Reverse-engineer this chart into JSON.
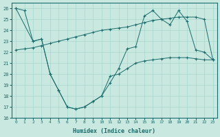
{
  "xlabel": "Humidex (Indice chaleur)",
  "bg_color": "#c8e8e0",
  "grid_color": "#a8d8d0",
  "line_color": "#1a6b6b",
  "xlim": [
    -0.5,
    23.5
  ],
  "ylim": [
    16,
    26.5
  ],
  "yticks": [
    16,
    17,
    18,
    19,
    20,
    21,
    22,
    23,
    24,
    25,
    26
  ],
  "xticks": [
    0,
    1,
    2,
    3,
    4,
    5,
    6,
    7,
    8,
    9,
    10,
    11,
    12,
    13,
    14,
    15,
    16,
    17,
    18,
    19,
    20,
    21,
    22,
    23
  ],
  "lineA_x": [
    0,
    1,
    2,
    3,
    4,
    5,
    6,
    7,
    8,
    9,
    10,
    11,
    12,
    13,
    14,
    15,
    16,
    17,
    18,
    19,
    20,
    21,
    22,
    23
  ],
  "lineA_y": [
    22.2,
    22.3,
    22.4,
    22.6,
    22.8,
    23.0,
    23.2,
    23.4,
    23.6,
    23.8,
    24.0,
    24.1,
    24.2,
    24.3,
    24.5,
    24.7,
    24.9,
    25.0,
    25.1,
    25.2,
    25.2,
    25.2,
    25.0,
    21.3
  ],
  "lineB_x": [
    0,
    1,
    2,
    3,
    4,
    5,
    6,
    7,
    8,
    9,
    10,
    11,
    12,
    13,
    14,
    15,
    16,
    17,
    18,
    19,
    20,
    21,
    22,
    23
  ],
  "lineB_y": [
    26.0,
    25.8,
    23.0,
    23.2,
    20.0,
    18.5,
    17.0,
    16.8,
    17.0,
    17.5,
    18.0,
    19.2,
    20.5,
    22.3,
    22.5,
    25.3,
    25.8,
    25.0,
    24.5,
    25.8,
    24.8,
    22.2,
    22.0,
    21.3
  ],
  "lineC_x": [
    0,
    2,
    3,
    4,
    5,
    6,
    7,
    8,
    9,
    10,
    11,
    12,
    13,
    14,
    15,
    16,
    17,
    18,
    19,
    20,
    21,
    22,
    23
  ],
  "lineC_y": [
    26.0,
    23.0,
    23.2,
    20.0,
    18.5,
    17.0,
    16.8,
    17.0,
    17.5,
    18.0,
    19.8,
    20.0,
    20.5,
    21.0,
    21.2,
    21.3,
    21.4,
    21.5,
    21.5,
    21.5,
    21.4,
    21.3,
    21.3
  ]
}
